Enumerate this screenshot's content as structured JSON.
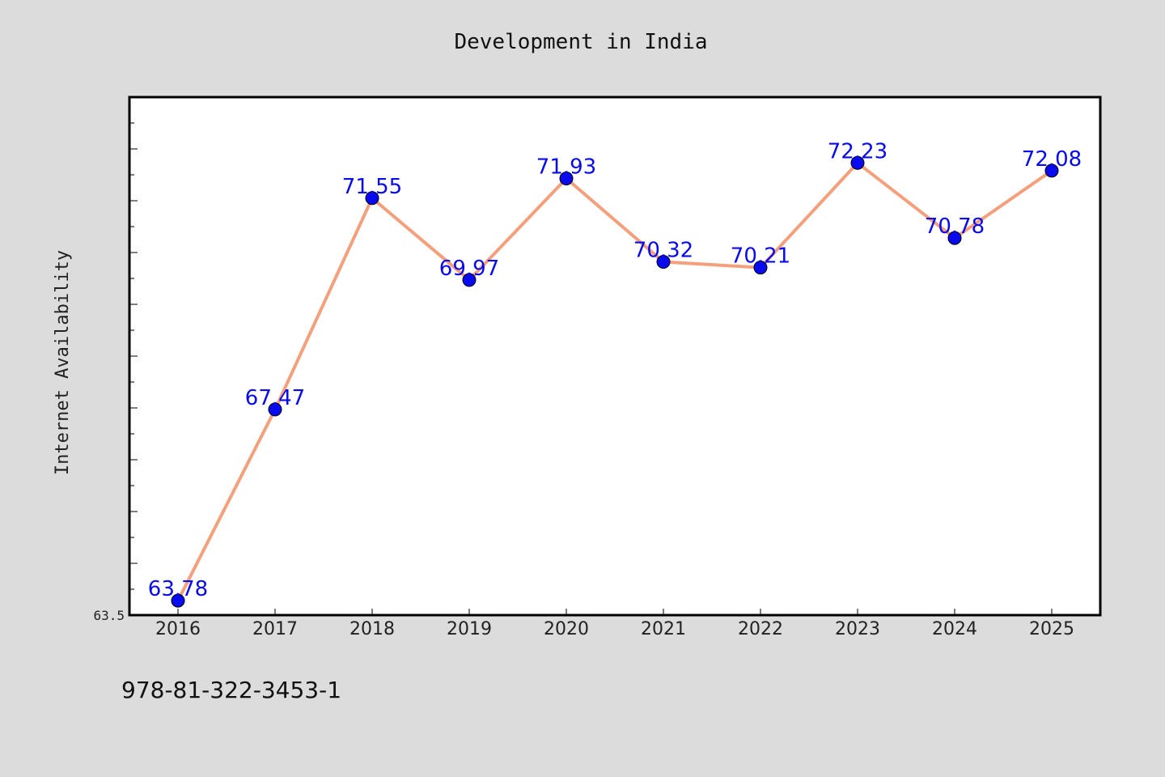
{
  "chart_data": {
    "type": "line",
    "title": "Development in India",
    "xlabel": "",
    "ylabel": "Internet Availability",
    "categories": [
      "2016",
      "2017",
      "2018",
      "2019",
      "2020",
      "2021",
      "2022",
      "2023",
      "2024",
      "2025"
    ],
    "series": [
      {
        "values": [
          63.78,
          67.47,
          71.55,
          69.97,
          71.93,
          70.32,
          70.21,
          72.23,
          70.78,
          72.08
        ],
        "line_color": "#f4a07c",
        "marker_color": "#0a0aee"
      }
    ],
    "data_labels": [
      "63.78",
      "67.47",
      "71.55",
      "69.97",
      "71.93",
      "70.32",
      "70.21",
      "72.23",
      "70.78",
      "72.08"
    ],
    "label_color": "#0a0aee",
    "ylim": [
      63.5,
      73.5
    ],
    "y_tick_labels": [
      "63.5"
    ],
    "grid": false,
    "legend": "none"
  },
  "footer": {
    "isbn": "978-81-322-3453-1"
  },
  "colors": {
    "background": "#dcdcdc",
    "plot_background": "#ffffff"
  }
}
